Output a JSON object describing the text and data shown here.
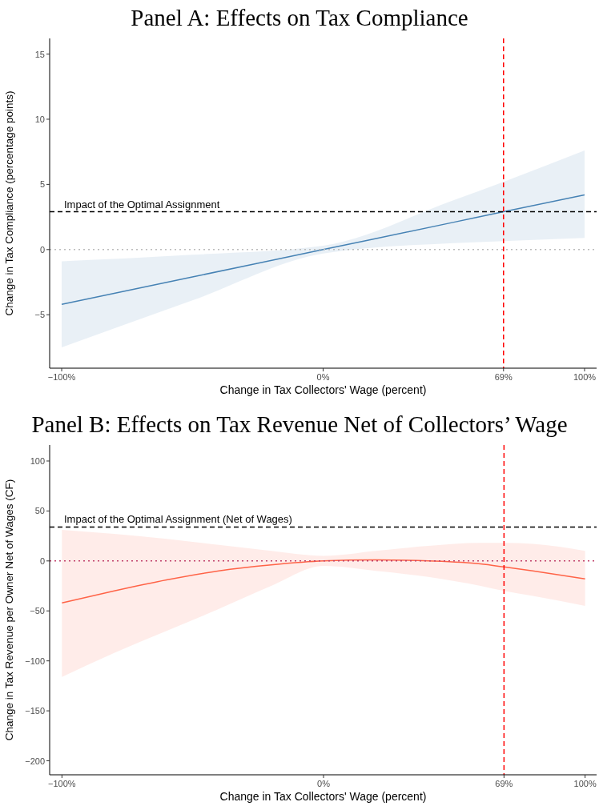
{
  "chart_data": [
    {
      "type": "line",
      "title": "Panel A: Effects on Tax Compliance",
      "xlabel": "Change in Tax Collectors' Wage (percent)",
      "ylabel": "Change in Tax Compliance (percentage points)",
      "xlim": [
        -104.6,
        104.6
      ],
      "ylim": [
        -9.1,
        16.2
      ],
      "xticks": [
        {
          "value": -100,
          "label": "−100%"
        },
        {
          "value": 0,
          "label": "0%"
        },
        {
          "value": 69,
          "label": "69%"
        },
        {
          "value": 100,
          "label": "100%"
        }
      ],
      "yticks": [
        {
          "value": -5,
          "label": "−5"
        },
        0,
        5,
        10,
        15
      ],
      "grid": false,
      "line_style": "solid",
      "marker": "none",
      "series": [
        {
          "color": "#4682b4",
          "x": [
            -100,
            -50,
            0,
            50,
            69,
            100
          ],
          "values": [
            -4.2,
            -2.1,
            0,
            2.1,
            2.9,
            4.2
          ],
          "lower": [
            -7.5,
            -3.9,
            -0.3,
            0.5,
            0.65,
            0.9
          ],
          "upper": [
            -0.9,
            -0.4,
            0.3,
            3.8,
            5.2,
            7.6
          ]
        }
      ],
      "ref_lines": [
        {
          "axis": "y",
          "value": 2.9,
          "label": "Impact of the Optimal Assignment",
          "color": "#000000",
          "line_style": "dashed"
        },
        {
          "axis": "x",
          "value": 69,
          "label": null,
          "color": "#ff0000",
          "line_style": "dashed"
        },
        {
          "axis": "y",
          "value": 0,
          "label": null,
          "color": "#bbbbbb",
          "line_style": "dotted"
        }
      ]
    },
    {
      "type": "line",
      "title": "Panel B: Effects on Tax Revenue Net of Collectors’ Wage",
      "xlabel": "Change in Tax Collectors' Wage (percent)",
      "ylabel": "Change in Tax Revenue per Owner Net of Wages (CF)",
      "xlim": [
        -104.7,
        104.4
      ],
      "ylim": [
        -214,
        116
      ],
      "xticks": [
        {
          "value": -100,
          "label": "−100%"
        },
        {
          "value": 0,
          "label": "0%"
        },
        {
          "value": 69,
          "label": "69%"
        },
        {
          "value": 100,
          "label": "100%"
        }
      ],
      "yticks": [
        {
          "value": -200,
          "label": "−200"
        },
        {
          "value": -150,
          "label": "−150"
        },
        {
          "value": -100,
          "label": "−100"
        },
        {
          "value": -50,
          "label": "−50"
        },
        0,
        50,
        100
      ],
      "grid": false,
      "line_style": "solid",
      "marker": "none",
      "series": [
        {
          "color": "#ff6347",
          "x": [
            -100,
            -80,
            -60,
            -40,
            -20,
            0,
            20,
            40,
            60,
            69,
            80,
            100
          ],
          "values": [
            -42,
            -30,
            -19,
            -10,
            -4,
            0,
            1,
            0,
            -3,
            -6,
            -10,
            -18
          ],
          "lower": [
            -116,
            -92,
            -70,
            -48,
            -25,
            -5,
            -10,
            -16,
            -25,
            -30,
            -35,
            -45
          ],
          "upper": [
            31,
            27,
            22,
            16,
            10,
            5,
            10,
            15,
            18,
            18,
            17,
            10
          ]
        }
      ],
      "ref_lines": [
        {
          "axis": "y",
          "value": 34,
          "label": "Impact of the Optimal Assignment (Net of Wages)",
          "color": "#000000",
          "line_style": "dashed"
        },
        {
          "axis": "x",
          "value": 69,
          "label": null,
          "color": "#ff0000",
          "line_style": "dashed"
        },
        {
          "axis": "y",
          "value": 0,
          "label": null,
          "color": "#c0406a",
          "line_style": "dotted"
        }
      ]
    }
  ]
}
